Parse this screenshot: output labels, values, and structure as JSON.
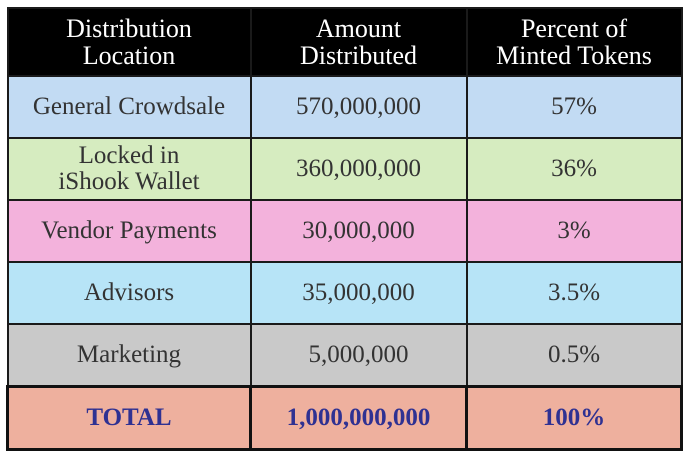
{
  "headers": [
    "Distribution\nLocation",
    "Amount\nDistributed",
    "Percent of\nMinted Tokens"
  ],
  "rows": [
    {
      "location": "General Crowdsale",
      "amount": "570,000,000",
      "percent": "57%",
      "bg": "#c2dbf3"
    },
    {
      "location": "Locked in iShook Wallet",
      "amount": "360,000,000",
      "percent": "36%",
      "bg": "#d6ecc0"
    },
    {
      "location": "Vendor Payments",
      "amount": "30,000,000",
      "percent": "3%",
      "bg": "#f3b2dc"
    },
    {
      "location": "Advisors",
      "amount": "35,000,000",
      "percent": "3.5%",
      "bg": "#b7e4f7"
    },
    {
      "location": "Marketing",
      "amount": "5,000,000",
      "percent": "0.5%",
      "bg": "#c9c9c9"
    }
  ],
  "total": {
    "location": "TOTAL",
    "amount": "1,000,000,000",
    "percent": "100%",
    "bg": "#eeb09e",
    "text_color": "#2f3192"
  },
  "header_bg": "#000000"
}
